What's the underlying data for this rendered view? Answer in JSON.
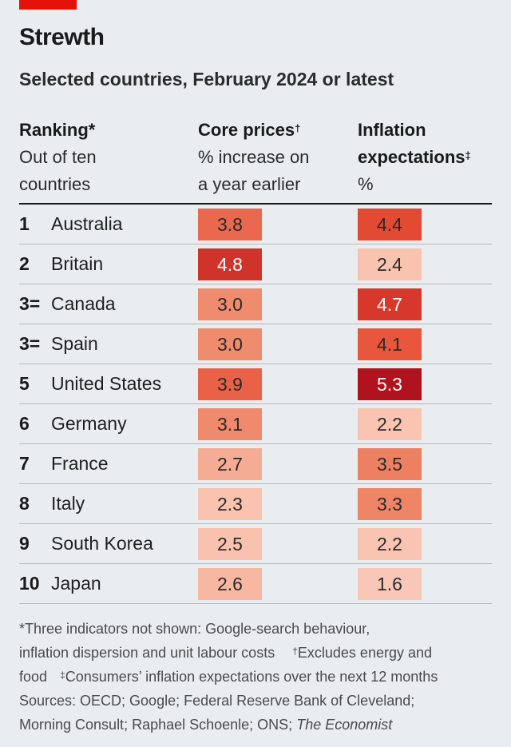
{
  "header": {
    "title": "Strewth",
    "subtitle": "Selected countries, February 2024 or latest"
  },
  "columns": {
    "ranking": {
      "title": "Ranking",
      "mark": "*",
      "sub1": "Out of ten",
      "sub2": "countries"
    },
    "core": {
      "title": "Core prices",
      "mark": "†",
      "sub1": "% increase on",
      "sub2": "a year earlier"
    },
    "inflation": {
      "title1": "Inflation",
      "title2": "expectations",
      "mark": "‡",
      "sub1": "%"
    }
  },
  "chart_data": {
    "type": "table",
    "title": "Strewth",
    "subtitle": "Selected countries, February 2024 or latest",
    "columns": [
      "Ranking",
      "Country",
      "Core prices, % increase on a year earlier",
      "Inflation expectations, %"
    ],
    "rows": [
      {
        "rank": "1",
        "country": "Australia",
        "core": 3.8,
        "inflation": 4.4
      },
      {
        "rank": "2",
        "country": "Britain",
        "core": 4.8,
        "inflation": 2.4
      },
      {
        "rank": "3=",
        "country": "Canada",
        "core": 3.0,
        "inflation": 4.7
      },
      {
        "rank": "3=",
        "country": "Spain",
        "core": 3.0,
        "inflation": 4.1
      },
      {
        "rank": "5",
        "country": "United States",
        "core": 3.9,
        "inflation": 5.3
      },
      {
        "rank": "6",
        "country": "Germany",
        "core": 3.1,
        "inflation": 2.2
      },
      {
        "rank": "7",
        "country": "France",
        "core": 2.7,
        "inflation": 3.5
      },
      {
        "rank": "8",
        "country": "Italy",
        "core": 2.3,
        "inflation": 3.3
      },
      {
        "rank": "9",
        "country": "South Korea",
        "core": 2.5,
        "inflation": 2.2
      },
      {
        "rank": "10",
        "country": "Japan",
        "core": 2.6,
        "inflation": 1.6
      }
    ]
  },
  "colors": {
    "accent": "#e3120b",
    "background": "#e9edf0",
    "scale_low": "#f8c7b7",
    "scale_high": "#b3121f"
  },
  "footnotes": {
    "line1": "*Three indicators not shown: Google-search behaviour,",
    "line2": "inflation dispersion and unit labour costs",
    "dagger_mark": "†",
    "dagger_text": "Excludes energy and",
    "line3a": "food",
    "ddagger_mark": "‡",
    "ddagger_text": "Consumers’ inflation expectations over the next 12 months",
    "line4": "Sources: OECD; Google; Federal Reserve Bank of Cleveland;",
    "line5": "Morning Consult; Raphael Schoenle; ONS;",
    "line5_italic": "The Economist"
  }
}
